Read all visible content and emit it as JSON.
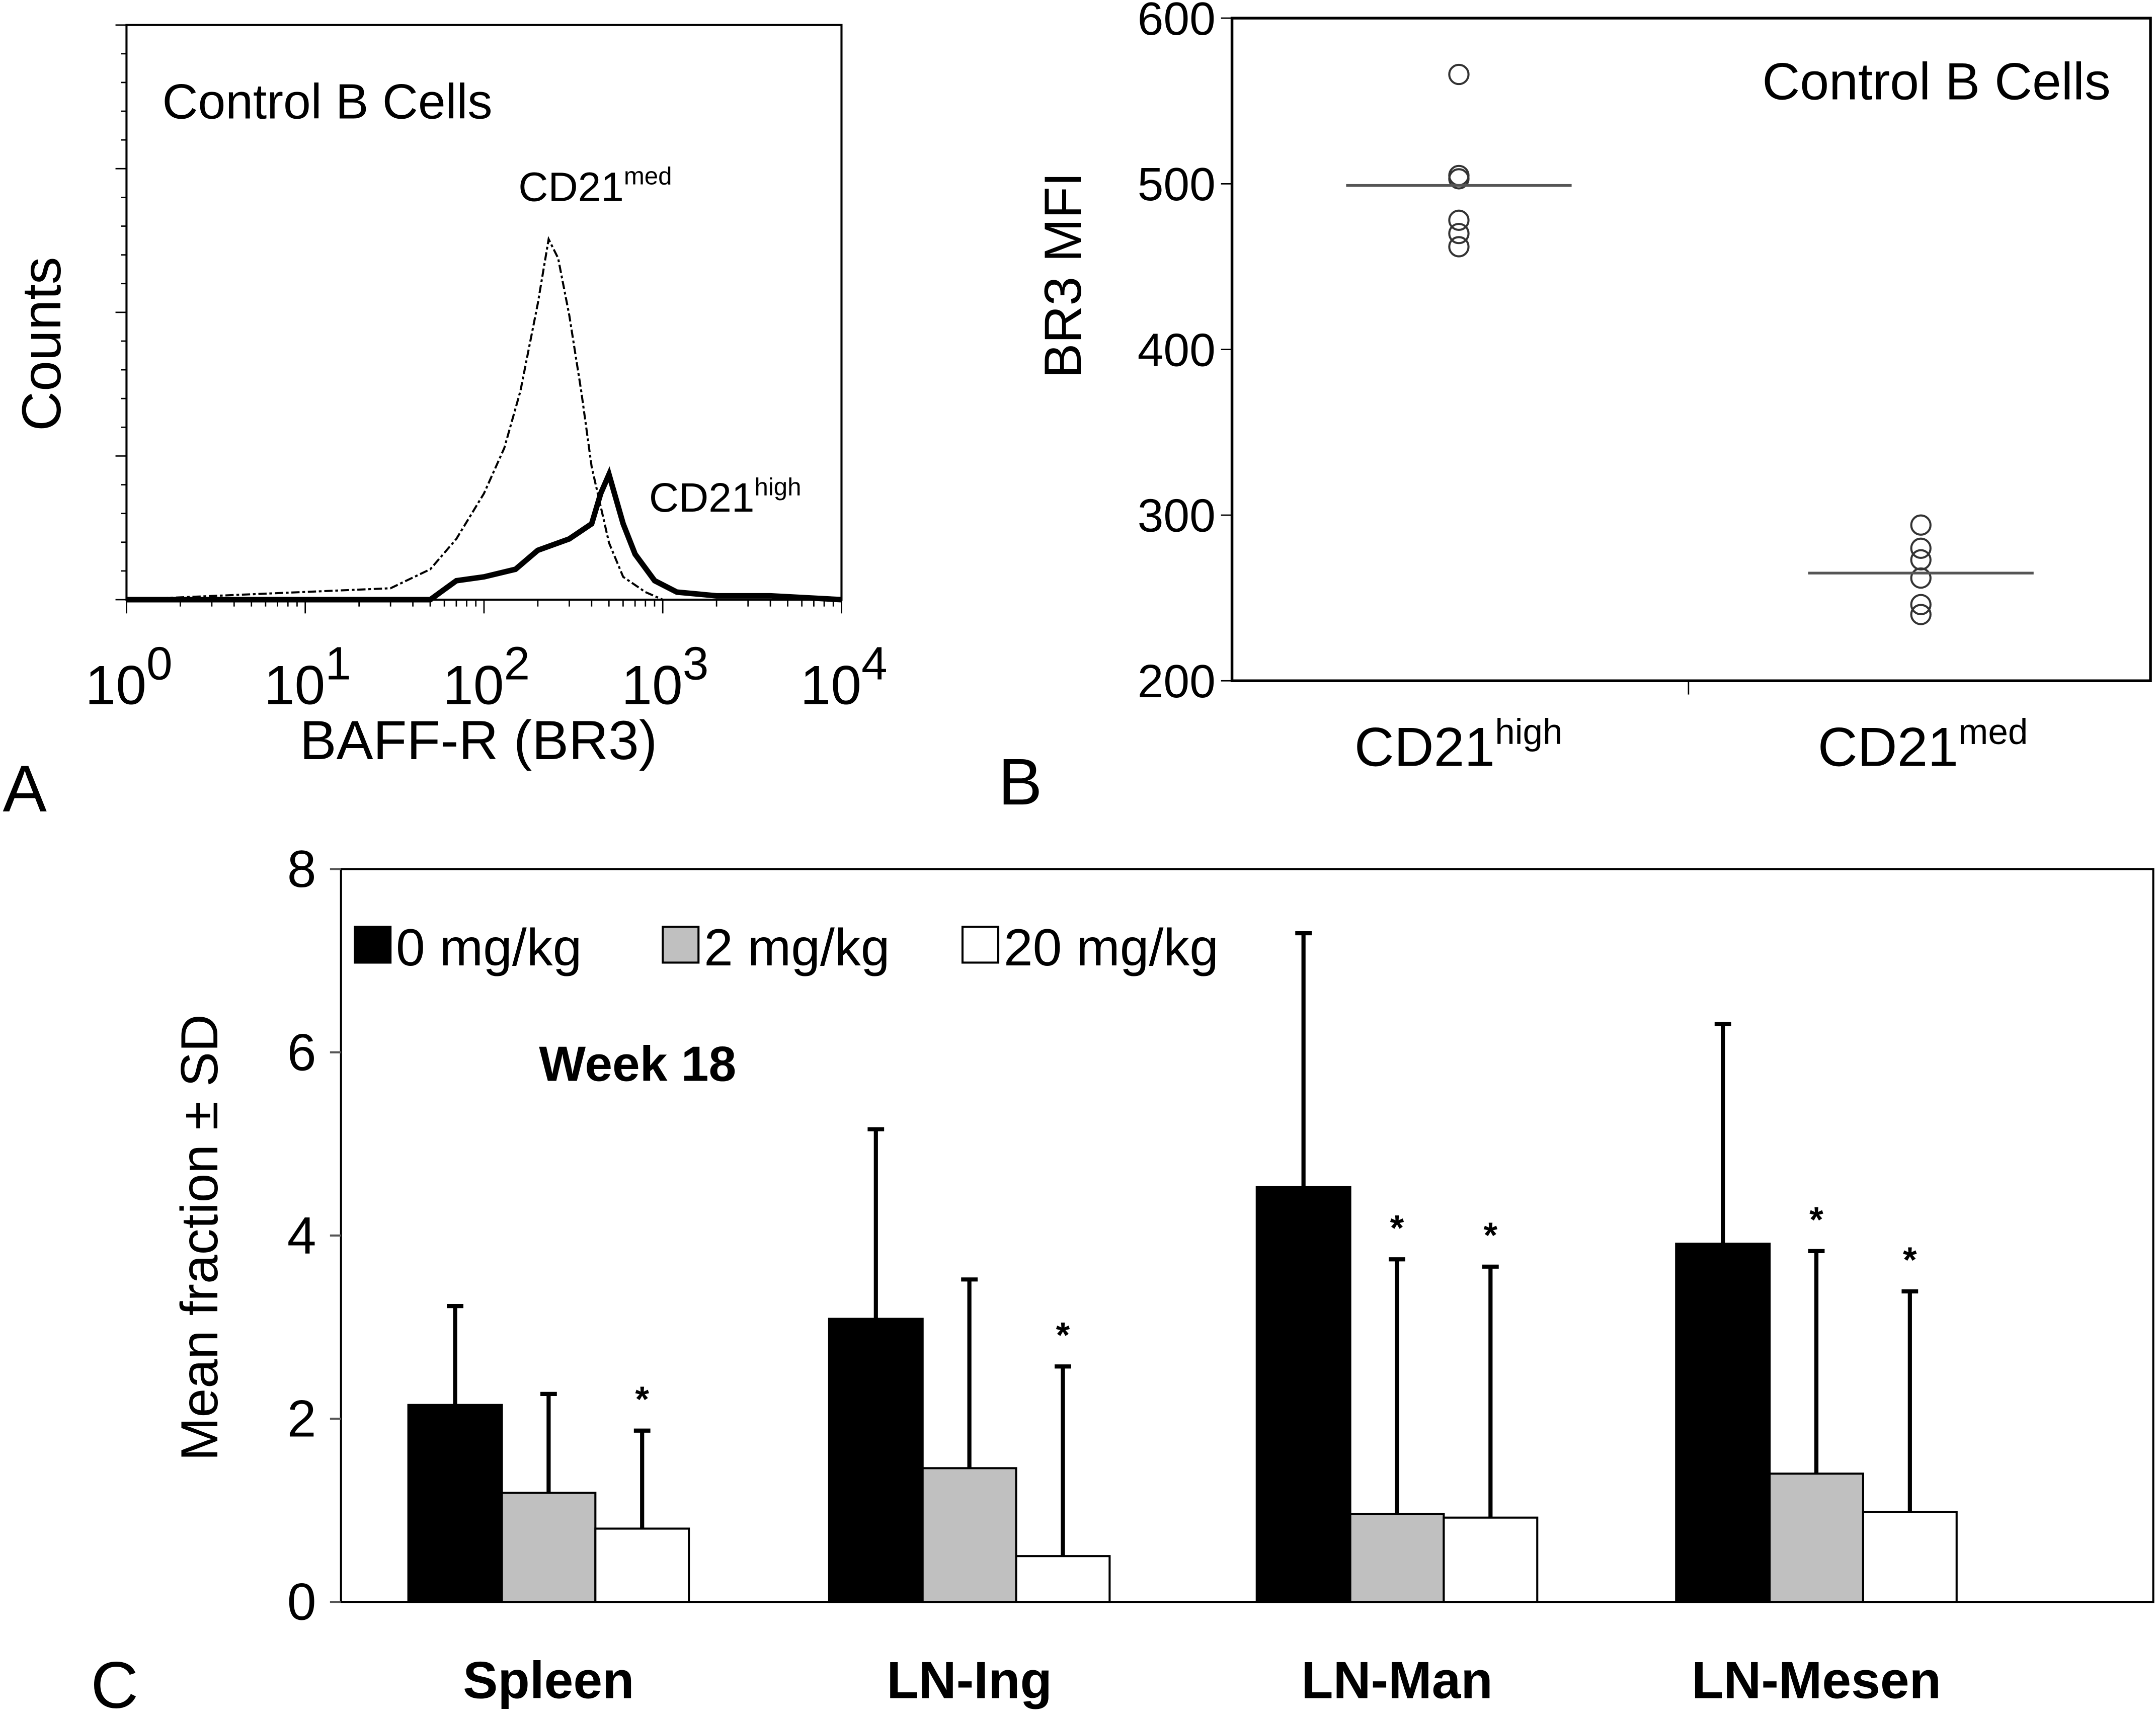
{
  "panel_labels": {
    "a": "A",
    "b": "B",
    "c": "C"
  },
  "chart_data": [
    {
      "panel": "A",
      "type": "line",
      "title": "Control B Cells",
      "xlabel": "BAFF-R (BR3)",
      "ylabel": "Counts",
      "xscale": "log",
      "xlim": [
        1,
        10000
      ],
      "x_ticks": [
        {
          "base": "10",
          "exp": "0"
        },
        {
          "base": "10",
          "exp": "1"
        },
        {
          "base": "10",
          "exp": "2"
        },
        {
          "base": "10",
          "exp": "3"
        },
        {
          "base": "10",
          "exp": "4"
        }
      ],
      "series": [
        {
          "name": "CD21",
          "sup": "med",
          "style": "dash-dot",
          "label": {
            "base": "CD21",
            "sup": "med"
          },
          "x": [
            1,
            30,
            50,
            70,
            100,
            130,
            160,
            200,
            230,
            260,
            300,
            350,
            400,
            500,
            600,
            800,
            1000
          ],
          "y": [
            0,
            3,
            8,
            16,
            28,
            40,
            55,
            78,
            95,
            90,
            75,
            55,
            35,
            15,
            6,
            2,
            0
          ]
        },
        {
          "name": "CD21",
          "sup": "high",
          "style": "solid-thick",
          "label": {
            "base": "CD21",
            "sup": "high"
          },
          "x": [
            1,
            50,
            70,
            100,
            150,
            200,
            300,
            400,
            450,
            500,
            600,
            700,
            900,
            1200,
            2000,
            4000,
            10000
          ],
          "y": [
            0,
            0,
            5,
            6,
            8,
            13,
            16,
            20,
            28,
            33,
            20,
            12,
            5,
            2,
            1,
            1,
            0
          ]
        }
      ]
    },
    {
      "panel": "B",
      "type": "scatter",
      "title": "Control B Cells",
      "ylabel": "BR3 MFI",
      "ylim": [
        200,
        600
      ],
      "y_ticks": [
        "200",
        "300",
        "400",
        "500",
        "600"
      ],
      "categories": [
        {
          "base": "CD21",
          "sup": "high"
        },
        {
          "base": "CD21",
          "sup": "med"
        }
      ],
      "series": [
        {
          "name": "CD21high",
          "values": [
            566,
            505,
            503,
            478,
            470,
            462
          ],
          "mean": 499
        },
        {
          "name": "CD21med",
          "values": [
            294,
            280,
            273,
            262,
            246,
            240
          ],
          "mean": 265
        }
      ]
    },
    {
      "panel": "C",
      "type": "bar",
      "annotation": "Week 18",
      "ylabel": "Mean fraction ± SD",
      "ylim": [
        0,
        8
      ],
      "y_ticks": [
        "0",
        "2",
        "4",
        "6",
        "8"
      ],
      "categories": [
        "Spleen",
        "LN-Ing",
        "LN-Man",
        "LN-Mesen"
      ],
      "series": [
        {
          "name": "0 mg/kg",
          "color": "#000000",
          "values": [
            2.15,
            3.09,
            4.53,
            3.91
          ],
          "sd": [
            1.08,
            2.07,
            2.77,
            2.4
          ],
          "significant": [
            false,
            false,
            false,
            false
          ]
        },
        {
          "name": "2 mg/kg",
          "color": "#c0c0c0",
          "values": [
            1.19,
            1.46,
            0.96,
            1.4
          ],
          "sd": [
            1.08,
            2.06,
            2.78,
            2.43
          ],
          "significant": [
            false,
            false,
            true,
            true
          ]
        },
        {
          "name": "20 mg/kg",
          "color": "#ffffff",
          "values": [
            0.8,
            0.5,
            0.92,
            0.98
          ],
          "sd": [
            1.07,
            2.07,
            2.74,
            2.41
          ],
          "significant": [
            true,
            true,
            true,
            true
          ]
        }
      ],
      "significance_marker": "*",
      "legend_position": "top-left"
    }
  ]
}
